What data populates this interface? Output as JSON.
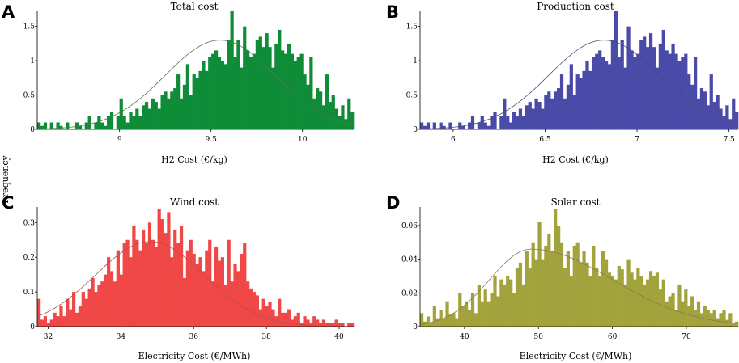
{
  "figure": {
    "ylabel": "Frequency"
  },
  "chart_data": [
    {
      "panel": "A",
      "type": "bar",
      "title": "Total cost",
      "xlabel": "H2 Cost (€/kg)",
      "ylabel": "Frequency",
      "xlim": [
        8.55,
        10.28
      ],
      "ylim": [
        0,
        1.72
      ],
      "xticks": [
        9,
        9.5,
        10
      ],
      "xtick_labels": [
        "9",
        "9.5",
        "10"
      ],
      "yticks": [
        0,
        0.5,
        1,
        1.5
      ],
      "ytick_labels": [
        "0",
        "0.5",
        "1",
        "1.5"
      ],
      "color": "#0e8c38",
      "fit": {
        "mean": 9.55,
        "sd": 0.3,
        "peak": 1.3,
        "color": "#4a7a4a"
      },
      "bins": {
        "start": 8.55,
        "width": 0.0173,
        "values": [
          0.1,
          0.05,
          0.1,
          0,
          0.1,
          0,
          0.1,
          0.05,
          0,
          0.1,
          0,
          0,
          0.1,
          0.05,
          0,
          0.1,
          0.2,
          0,
          0.1,
          0.2,
          0.1,
          0.05,
          0.2,
          0.25,
          0,
          0.2,
          0.45,
          0.2,
          0.1,
          0.25,
          0.2,
          0.3,
          0.2,
          0.35,
          0.4,
          0.3,
          0.45,
          0.4,
          0.3,
          0.5,
          0.55,
          0.45,
          0.55,
          0.6,
          0.8,
          0.45,
          0.65,
          0.95,
          0.5,
          0.8,
          0.75,
          0.85,
          1,
          0.85,
          1.05,
          1.1,
          1.15,
          1.05,
          1,
          0.95,
          1.3,
          1.72,
          1.05,
          1.3,
          0.9,
          1.5,
          1.15,
          1.05,
          1.1,
          1.3,
          1.35,
          1.2,
          1.4,
          1.2,
          0.9,
          1.25,
          1.45,
          1.15,
          1.1,
          1.25,
          1.1,
          1,
          1.05,
          1.1,
          0.8,
          0.65,
          1.05,
          0.45,
          0.6,
          0.55,
          0.35,
          0.8,
          0.4,
          0.5,
          0.3,
          0.2,
          0.35,
          0.15,
          0.45,
          0.25
        ]
      }
    },
    {
      "panel": "B",
      "type": "bar",
      "title": "Production cost",
      "xlabel": "H2 Cost (€/kg)",
      "ylabel": "Frequency",
      "xlim": [
        5.82,
        7.55
      ],
      "ylim": [
        0,
        1.72
      ],
      "xticks": [
        6,
        6.5,
        7,
        7.5
      ],
      "xtick_labels": [
        "6",
        "6.5",
        "7",
        "7.5"
      ],
      "yticks": [
        0,
        0.5,
        1,
        1.5
      ],
      "ytick_labels": [
        "0",
        "0.5",
        "1",
        "1.5"
      ],
      "color": "#4a4aa8",
      "fit": {
        "mean": 6.82,
        "sd": 0.3,
        "peak": 1.3,
        "color": "#4a4a7a"
      },
      "bins": {
        "start": 5.82,
        "width": 0.0173,
        "values": [
          0.1,
          0.05,
          0.1,
          0,
          0.1,
          0,
          0.1,
          0.05,
          0,
          0.1,
          0,
          0,
          0.1,
          0.05,
          0,
          0.1,
          0.2,
          0,
          0.1,
          0.2,
          0.1,
          0.05,
          0.2,
          0.25,
          0,
          0.2,
          0.45,
          0.2,
          0.1,
          0.25,
          0.2,
          0.3,
          0.2,
          0.35,
          0.4,
          0.3,
          0.45,
          0.4,
          0.3,
          0.5,
          0.55,
          0.45,
          0.55,
          0.6,
          0.8,
          0.45,
          0.65,
          0.95,
          0.5,
          0.8,
          0.75,
          0.85,
          1,
          0.85,
          1.05,
          1.1,
          1.15,
          1.05,
          1,
          0.95,
          1.3,
          1.72,
          1.05,
          1.3,
          0.9,
          1.5,
          1.15,
          1.05,
          1.1,
          1.3,
          1.35,
          1.2,
          1.4,
          1.2,
          0.9,
          1.25,
          1.45,
          1.15,
          1.1,
          1.25,
          1.1,
          1,
          1.05,
          1.1,
          0.8,
          0.65,
          1.05,
          0.45,
          0.6,
          0.55,
          0.35,
          0.8,
          0.4,
          0.5,
          0.3,
          0.2,
          0.35,
          0.15,
          0.45,
          0.25
        ]
      }
    },
    {
      "panel": "C",
      "type": "bar",
      "title": "Wind cost",
      "xlabel": "Electricity Cost (€/MWh)",
      "ylabel": "Frequency",
      "xlim": [
        31.7,
        40.4
      ],
      "ylim": [
        0,
        0.345
      ],
      "xticks": [
        32,
        34,
        36,
        38,
        40
      ],
      "xtick_labels": [
        "32",
        "34",
        "36",
        "38",
        "40"
      ],
      "yticks": [
        0,
        0.1,
        0.2,
        0.3
      ],
      "ytick_labels": [
        "0",
        "0.1",
        "0.2",
        "0.3"
      ],
      "color": "#f04747",
      "fit": {
        "mean": 34.8,
        "sd": 1.5,
        "peak": 0.245,
        "color": "#b05050"
      },
      "bins": {
        "start": 31.7,
        "width": 0.087,
        "values": [
          0.08,
          0.02,
          0.03,
          0.01,
          0.02,
          0.04,
          0.03,
          0.06,
          0.03,
          0.08,
          0.05,
          0.1,
          0.04,
          0.06,
          0.1,
          0.08,
          0.11,
          0.14,
          0.1,
          0.12,
          0.13,
          0.15,
          0.2,
          0.16,
          0.13,
          0.22,
          0.15,
          0.24,
          0.25,
          0.2,
          0.29,
          0.25,
          0.22,
          0.28,
          0.24,
          0.3,
          0.25,
          0.23,
          0.34,
          0.31,
          0.27,
          0.33,
          0.2,
          0.28,
          0.24,
          0.29,
          0.14,
          0.22,
          0.25,
          0.21,
          0.18,
          0.2,
          0.16,
          0.22,
          0.25,
          0.13,
          0.23,
          0.19,
          0.2,
          0.12,
          0.25,
          0.13,
          0.18,
          0.16,
          0.21,
          0.24,
          0.13,
          0.11,
          0.1,
          0.09,
          0.05,
          0.08,
          0.06,
          0.07,
          0.05,
          0.03,
          0.08,
          0.04,
          0.04,
          0.05,
          0.02,
          0.03,
          0.04,
          0.01,
          0.03,
          0.02,
          0.01,
          0.03,
          0.02,
          0.01,
          0.02,
          0.01,
          0.01,
          0.01,
          0.02,
          0.01,
          0.01,
          0,
          0.01,
          0.01
        ]
      }
    },
    {
      "panel": "D",
      "type": "bar",
      "title": "Solar cost",
      "xlabel": "Electricity Cost (€/MWh)",
      "ylabel": "Frequency",
      "xlim": [
        34,
        77
      ],
      "ylim": [
        0,
        0.071
      ],
      "xticks": [
        40,
        50,
        60,
        70
      ],
      "xtick_labels": [
        "40",
        "50",
        "60",
        "70"
      ],
      "yticks": [
        0,
        0.02,
        0.04,
        0.06
      ],
      "ytick_labels": [
        "0",
        "0.02",
        "0.04",
        "0.06"
      ],
      "color": "#a3a33d",
      "fit": {
        "mean": 49,
        "sd": 5.6,
        "peak": 0.046,
        "sd_right": 11,
        "color": "#8a7a50"
      },
      "bins": {
        "start": 34,
        "width": 0.43,
        "values": [
          0.008,
          0.003,
          0.006,
          0.002,
          0.012,
          0.005,
          0.01,
          0.005,
          0.015,
          0.007,
          0.008,
          0.005,
          0.02,
          0.012,
          0.015,
          0.01,
          0.02,
          0.008,
          0.025,
          0.015,
          0.022,
          0.015,
          0.02,
          0.03,
          0.018,
          0.028,
          0.025,
          0.03,
          0.028,
          0.02,
          0.035,
          0.038,
          0.025,
          0.045,
          0.035,
          0.05,
          0.04,
          0.062,
          0.04,
          0.048,
          0.055,
          0.045,
          0.07,
          0.06,
          0.05,
          0.035,
          0.045,
          0.03,
          0.048,
          0.05,
          0.038,
          0.045,
          0.038,
          0.03,
          0.048,
          0.035,
          0.03,
          0.045,
          0.04,
          0.032,
          0.03,
          0.028,
          0.036,
          0.034,
          0.025,
          0.04,
          0.032,
          0.028,
          0.035,
          0.03,
          0.025,
          0.028,
          0.033,
          0.03,
          0.032,
          0.022,
          0.028,
          0.015,
          0.018,
          0.02,
          0.01,
          0.025,
          0.015,
          0.022,
          0.012,
          0.018,
          0.01,
          0.015,
          0.008,
          0.012,
          0.01,
          0.008,
          0.01,
          0.005,
          0.008,
          0.01,
          0.004,
          0.008,
          0.002,
          0.003
        ]
      }
    }
  ]
}
